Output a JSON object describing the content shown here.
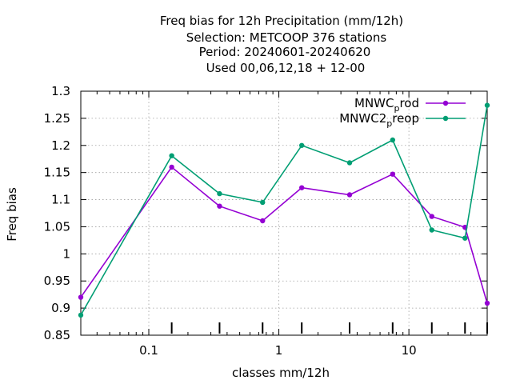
{
  "chart_data": {
    "type": "line",
    "title_lines": [
      "Freq bias  for 12h Precipitation (mm/12h)",
      "Selection: METCOOP    376 stations",
      "Period: 20240601-20240620",
      "Used  00,06,12,18 + 12-00"
    ],
    "xlabel": "classes mm/12h",
    "ylabel": "Freq bias",
    "x_scale": "log",
    "xlim": [
      0.03,
      40
    ],
    "ylim": [
      0.85,
      1.3
    ],
    "x_ticks": [
      {
        "value": 0.1,
        "label": "0.1"
      },
      {
        "value": 1,
        "label": "1"
      },
      {
        "value": 10,
        "label": "10"
      }
    ],
    "y_ticks": [
      {
        "value": 0.85,
        "label": "0.85"
      },
      {
        "value": 0.9,
        "label": "0.9"
      },
      {
        "value": 0.95,
        "label": "0.95"
      },
      {
        "value": 1.0,
        "label": "1"
      },
      {
        "value": 1.05,
        "label": "1.05"
      },
      {
        "value": 1.1,
        "label": "1.1"
      },
      {
        "value": 1.15,
        "label": "1.15"
      },
      {
        "value": 1.2,
        "label": "1.2"
      },
      {
        "value": 1.25,
        "label": "1.25"
      },
      {
        "value": 1.3,
        "label": "1.3"
      }
    ],
    "grid": true,
    "legend_position": "top-right",
    "series": [
      {
        "legend_main": "MNWC",
        "legend_sub": "p",
        "legend_rest": "rod",
        "color": "#9400d3",
        "points": [
          {
            "x": 0.03,
            "y": 0.92
          },
          {
            "x": 0.15,
            "y": 1.16
          },
          {
            "x": 0.35,
            "y": 1.088
          },
          {
            "x": 0.75,
            "y": 1.061
          },
          {
            "x": 1.5,
            "y": 1.122
          },
          {
            "x": 3.5,
            "y": 1.109
          },
          {
            "x": 7.5,
            "y": 1.147
          },
          {
            "x": 15,
            "y": 1.069
          },
          {
            "x": 27,
            "y": 1.049
          },
          {
            "x": 40,
            "y": 0.909
          }
        ]
      },
      {
        "legend_main": "MNWC2",
        "legend_sub": "p",
        "legend_rest": "reop",
        "color": "#009e73",
        "points": [
          {
            "x": 0.03,
            "y": 0.887
          },
          {
            "x": 0.15,
            "y": 1.181
          },
          {
            "x": 0.35,
            "y": 1.111
          },
          {
            "x": 0.75,
            "y": 1.095
          },
          {
            "x": 1.5,
            "y": 1.2
          },
          {
            "x": 3.5,
            "y": 1.168
          },
          {
            "x": 7.5,
            "y": 1.21
          },
          {
            "x": 15,
            "y": 1.044
          },
          {
            "x": 27,
            "y": 1.029
          },
          {
            "x": 40,
            "y": 1.274
          }
        ]
      }
    ]
  }
}
